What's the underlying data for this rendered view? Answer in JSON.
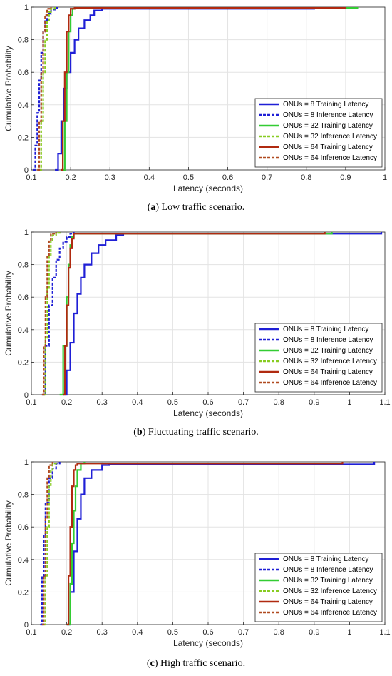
{
  "chart_data": [
    {
      "type": "line",
      "caption_letter": "a",
      "caption_text": " Low traffic scenario.",
      "xlabel": "Latency (seconds)",
      "ylabel": "Cumulative Probability",
      "xlim": [
        0.1,
        1.0
      ],
      "ylim": [
        0,
        1
      ],
      "xticks": [
        0.1,
        0.2,
        0.3,
        0.4,
        0.5,
        0.6,
        0.7,
        0.8,
        0.9,
        1.0
      ],
      "xtick_labels": [
        "0.1",
        "0.2",
        "0.3",
        "0.4",
        "0.5",
        "0.6",
        "0.7",
        "0.8",
        "0.9",
        "1"
      ],
      "yticks": [
        0,
        0.2,
        0.4,
        0.6,
        0.8,
        1
      ],
      "ytick_labels": [
        "0",
        "0.2",
        "0.4",
        "0.6",
        "0.8",
        "1"
      ],
      "grid": true,
      "legend_position": "bottom-right",
      "series": [
        {
          "name": "ONUs = 8 Training Latency",
          "color": "#1f1fd6",
          "dash": "solid",
          "x": [
            0.16,
            0.168,
            0.176,
            0.183,
            0.19,
            0.2,
            0.21,
            0.22,
            0.235,
            0.25,
            0.26,
            0.28,
            0.82
          ],
          "y": [
            0,
            0.1,
            0.3,
            0.5,
            0.6,
            0.72,
            0.8,
            0.87,
            0.92,
            0.95,
            0.98,
            0.99,
            1
          ]
        },
        {
          "name": "ONUs = 8 Inference Latency",
          "color": "#1f1fd6",
          "dash": "dash",
          "x": [
            0.105,
            0.11,
            0.115,
            0.12,
            0.125,
            0.13,
            0.135,
            0.14,
            0.15,
            0.16,
            0.17
          ],
          "y": [
            0,
            0.15,
            0.35,
            0.55,
            0.72,
            0.85,
            0.92,
            0.96,
            0.985,
            0.995,
            1
          ]
        },
        {
          "name": "ONUs = 32 Training Latency",
          "color": "#33cc33",
          "dash": "solid",
          "x": [
            0.18,
            0.185,
            0.19,
            0.195,
            0.2,
            0.205,
            0.21,
            0.93
          ],
          "y": [
            0,
            0.3,
            0.6,
            0.85,
            0.95,
            0.99,
            0.995,
            1
          ]
        },
        {
          "name": "ONUs = 32 Inference Latency",
          "color": "#88cc22",
          "dash": "dash",
          "x": [
            0.12,
            0.125,
            0.13,
            0.135,
            0.14,
            0.145,
            0.15,
            0.16
          ],
          "y": [
            0,
            0.3,
            0.6,
            0.8,
            0.92,
            0.97,
            0.99,
            1
          ]
        },
        {
          "name": "ONUs = 64 Training Latency",
          "color": "#b02a10",
          "dash": "solid",
          "x": [
            0.175,
            0.18,
            0.185,
            0.19,
            0.195,
            0.2,
            0.21,
            0.9
          ],
          "y": [
            0,
            0.3,
            0.6,
            0.85,
            0.95,
            0.99,
            0.995,
            1
          ]
        },
        {
          "name": "ONUs = 64 Inference Latency",
          "color": "#b04a20",
          "dash": "dash",
          "x": [
            0.115,
            0.12,
            0.125,
            0.13,
            0.135,
            0.14,
            0.15
          ],
          "y": [
            0,
            0.3,
            0.6,
            0.85,
            0.95,
            0.99,
            1
          ]
        }
      ]
    },
    {
      "type": "line",
      "caption_letter": "b",
      "caption_text": " Fluctuating traffic scenario.",
      "xlabel": "Latency (seconds)",
      "ylabel": "Cumulative Probability",
      "xlim": [
        0.1,
        1.1
      ],
      "ylim": [
        0,
        1
      ],
      "xticks": [
        0.1,
        0.2,
        0.3,
        0.4,
        0.5,
        0.6,
        0.7,
        0.8,
        0.9,
        1.0,
        1.1
      ],
      "xtick_labels": [
        "0.1",
        "0.2",
        "0.3",
        "0.4",
        "0.5",
        "0.6",
        "0.7",
        "0.8",
        "0.9",
        "1",
        "1.1"
      ],
      "yticks": [
        0,
        0.2,
        0.4,
        0.6,
        0.8,
        1
      ],
      "ytick_labels": [
        "0",
        "0.2",
        "0.4",
        "0.6",
        "0.8",
        "1"
      ],
      "grid": true,
      "legend_position": "bottom-right",
      "series": [
        {
          "name": "ONUs = 8 Training Latency",
          "color": "#1f1fd6",
          "dash": "solid",
          "x": [
            0.19,
            0.2,
            0.21,
            0.22,
            0.23,
            0.24,
            0.25,
            0.27,
            0.29,
            0.31,
            0.34,
            0.36,
            1.09
          ],
          "y": [
            0,
            0.15,
            0.32,
            0.5,
            0.62,
            0.72,
            0.8,
            0.87,
            0.92,
            0.95,
            0.98,
            0.99,
            1
          ]
        },
        {
          "name": "ONUs = 8 Inference Latency",
          "color": "#1f1fd6",
          "dash": "dash",
          "x": [
            0.13,
            0.14,
            0.15,
            0.16,
            0.17,
            0.18,
            0.19,
            0.2,
            0.21,
            0.22
          ],
          "y": [
            0,
            0.3,
            0.55,
            0.72,
            0.83,
            0.9,
            0.94,
            0.97,
            0.99,
            1
          ]
        },
        {
          "name": "ONUs = 32 Training Latency",
          "color": "#33cc33",
          "dash": "solid",
          "x": [
            0.18,
            0.19,
            0.2,
            0.205,
            0.21,
            0.215,
            0.22,
            0.95
          ],
          "y": [
            0,
            0.3,
            0.6,
            0.8,
            0.92,
            0.97,
            0.99,
            1
          ]
        },
        {
          "name": "ONUs = 32 Inference Latency",
          "color": "#88cc22",
          "dash": "dash",
          "x": [
            0.135,
            0.14,
            0.145,
            0.15,
            0.155,
            0.16,
            0.17,
            0.18
          ],
          "y": [
            0,
            0.35,
            0.65,
            0.85,
            0.95,
            0.98,
            0.995,
            1
          ]
        },
        {
          "name": "ONUs = 64 Training Latency",
          "color": "#b02a10",
          "dash": "solid",
          "x": [
            0.19,
            0.195,
            0.2,
            0.205,
            0.21,
            0.215,
            0.22,
            0.93
          ],
          "y": [
            0,
            0.3,
            0.55,
            0.78,
            0.9,
            0.96,
            0.99,
            1
          ]
        },
        {
          "name": "ONUs = 64 Inference Latency",
          "color": "#b04a20",
          "dash": "dash",
          "x": [
            0.13,
            0.135,
            0.14,
            0.145,
            0.15,
            0.155,
            0.17
          ],
          "y": [
            0,
            0.3,
            0.6,
            0.85,
            0.95,
            0.99,
            1
          ]
        }
      ]
    },
    {
      "type": "line",
      "caption_letter": "c",
      "caption_text": " High traffic scenario.",
      "xlabel": "Latency (seconds)",
      "ylabel": "Cumulative Probability",
      "xlim": [
        0.1,
        1.1
      ],
      "ylim": [
        0,
        1
      ],
      "xticks": [
        0.1,
        0.2,
        0.3,
        0.4,
        0.5,
        0.6,
        0.7,
        0.8,
        0.9,
        1.0,
        1.1
      ],
      "xtick_labels": [
        "0.1",
        "0.2",
        "0.3",
        "0.4",
        "0.5",
        "0.6",
        "0.7",
        "0.8",
        "0.9",
        "1",
        "1.1"
      ],
      "yticks": [
        0,
        0.2,
        0.4,
        0.6,
        0.8,
        1
      ],
      "ytick_labels": [
        "0",
        "0.2",
        "0.4",
        "0.6",
        "0.8",
        "1"
      ],
      "grid": true,
      "legend_position": "bottom-right",
      "series": [
        {
          "name": "ONUs = 8 Training Latency",
          "color": "#1f1fd6",
          "dash": "solid",
          "x": [
            0.2,
            0.21,
            0.22,
            0.23,
            0.24,
            0.25,
            0.27,
            0.3,
            0.32,
            1.07
          ],
          "y": [
            0,
            0.2,
            0.45,
            0.65,
            0.8,
            0.9,
            0.95,
            0.98,
            0.985,
            1
          ]
        },
        {
          "name": "ONUs = 8 Inference Latency",
          "color": "#1f1fd6",
          "dash": "dash",
          "x": [
            0.125,
            0.13,
            0.135,
            0.14,
            0.15,
            0.16,
            0.17,
            0.18
          ],
          "y": [
            0,
            0.3,
            0.55,
            0.75,
            0.9,
            0.96,
            0.99,
            1
          ]
        },
        {
          "name": "ONUs = 32 Training Latency",
          "color": "#33cc33",
          "dash": "solid",
          "x": [
            0.2,
            0.21,
            0.215,
            0.22,
            0.225,
            0.23,
            0.24,
            0.25
          ],
          "y": [
            0,
            0.25,
            0.5,
            0.7,
            0.85,
            0.95,
            0.99,
            1
          ]
        },
        {
          "name": "ONUs = 32 Inference Latency",
          "color": "#88cc22",
          "dash": "dash",
          "x": [
            0.135,
            0.14,
            0.145,
            0.15,
            0.155,
            0.16,
            0.17
          ],
          "y": [
            0,
            0.3,
            0.6,
            0.85,
            0.95,
            0.99,
            1
          ]
        },
        {
          "name": "ONUs = 64 Training Latency",
          "color": "#b02a10",
          "dash": "solid",
          "x": [
            0.2,
            0.205,
            0.21,
            0.215,
            0.22,
            0.225,
            0.23,
            0.98
          ],
          "y": [
            0,
            0.3,
            0.6,
            0.85,
            0.95,
            0.98,
            0.99,
            1
          ]
        },
        {
          "name": "ONUs = 64 Inference Latency",
          "color": "#b04a20",
          "dash": "dash",
          "x": [
            0.13,
            0.135,
            0.14,
            0.145,
            0.15,
            0.16
          ],
          "y": [
            0,
            0.3,
            0.65,
            0.9,
            0.98,
            1
          ]
        }
      ]
    }
  ]
}
